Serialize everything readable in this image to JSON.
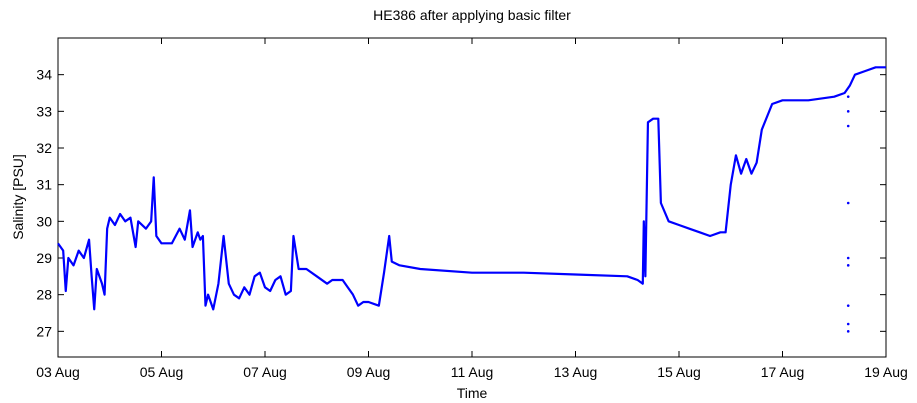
{
  "chart_data": {
    "type": "line",
    "title": "HE386 after applying basic filter",
    "x_label": "Time",
    "y_label": "Salinity [PSU]",
    "xlim": [
      3,
      19
    ],
    "ylim": [
      26.3,
      35
    ],
    "xticks": [
      {
        "value": 3,
        "label": "03 Aug"
      },
      {
        "value": 5,
        "label": "05 Aug"
      },
      {
        "value": 7,
        "label": "07 Aug"
      },
      {
        "value": 9,
        "label": "09 Aug"
      },
      {
        "value": 11,
        "label": "11 Aug"
      },
      {
        "value": 13,
        "label": "13 Aug"
      },
      {
        "value": 15,
        "label": "15 Aug"
      },
      {
        "value": 17,
        "label": "17 Aug"
      },
      {
        "value": 19,
        "label": "19 Aug"
      }
    ],
    "yticks": [
      27,
      28,
      29,
      30,
      31,
      32,
      33,
      34
    ],
    "series": [
      {
        "style": "line",
        "color": "#0000ff",
        "x": [
          3,
          3.1,
          3.15,
          3.2,
          3.3,
          3.4,
          3.5,
          3.6,
          3.65,
          3.7,
          3.75,
          3.85,
          3.9,
          3.95,
          4,
          4.1,
          4.2,
          4.3,
          4.4,
          4.5,
          4.55,
          4.7,
          4.8,
          4.85,
          4.9,
          5,
          5.2,
          5.35,
          5.45,
          5.55,
          5.6,
          5.7,
          5.75,
          5.8,
          5.85,
          5.9,
          6,
          6.1,
          6.2,
          6.3,
          6.4,
          6.5,
          6.6,
          6.7,
          6.8,
          6.9,
          7,
          7.1,
          7.2,
          7.3,
          7.4,
          7.5,
          7.55,
          7.65,
          7.8,
          8,
          8.2,
          8.3,
          8.5,
          8.6,
          8.7,
          8.8,
          8.9,
          9,
          9.2,
          9.3,
          9.4,
          9.45,
          9.6,
          10,
          11,
          12,
          13,
          14,
          14.2,
          14.3,
          14.32,
          14.35,
          14.4,
          14.5,
          14.6,
          14.65,
          14.8,
          15,
          15.2,
          15.4,
          15.6,
          15.8,
          15.9,
          16,
          16.1,
          16.2,
          16.3,
          16.4,
          16.5,
          16.6,
          16.8,
          17,
          17.5,
          18,
          18.2,
          18.3,
          18.4,
          18.6,
          18.8,
          19
        ],
        "values": [
          29.4,
          29.2,
          28.1,
          29.0,
          28.8,
          29.2,
          29.0,
          29.5,
          28.5,
          27.6,
          28.7,
          28.3,
          28.0,
          29.8,
          30.1,
          29.9,
          30.2,
          30.0,
          30.1,
          29.3,
          30.0,
          29.8,
          30.0,
          31.2,
          29.6,
          29.4,
          29.4,
          29.8,
          29.5,
          30.3,
          29.3,
          29.7,
          29.5,
          29.6,
          27.7,
          28.0,
          27.6,
          28.3,
          29.6,
          28.3,
          28.0,
          27.9,
          28.2,
          28.0,
          28.5,
          28.6,
          28.2,
          28.1,
          28.4,
          28.5,
          28.0,
          28.1,
          29.6,
          28.7,
          28.7,
          28.5,
          28.3,
          28.4,
          28.4,
          28.2,
          28.0,
          27.7,
          27.8,
          27.8,
          27.7,
          28.6,
          29.6,
          28.9,
          28.8,
          28.7,
          28.6,
          28.6,
          28.55,
          28.5,
          28.4,
          28.3,
          30.0,
          28.5,
          32.7,
          32.8,
          32.8,
          30.5,
          30.0,
          29.9,
          29.8,
          29.7,
          29.6,
          29.7,
          29.7,
          31.0,
          31.8,
          31.3,
          31.7,
          31.3,
          31.6,
          32.5,
          33.2,
          33.3,
          33.3,
          33.4,
          33.5,
          33.7,
          34.0,
          34.1,
          34.2,
          34.2
        ]
      },
      {
        "style": "dots",
        "color": "#0000ff",
        "x": [
          18.27,
          18.27,
          18.27,
          18.27,
          18.27,
          18.27,
          18.27,
          18.27,
          18.27
        ],
        "values": [
          33.4,
          33.0,
          32.6,
          30.5,
          29.0,
          28.8,
          27.7,
          27.2,
          27.0
        ]
      }
    ]
  }
}
